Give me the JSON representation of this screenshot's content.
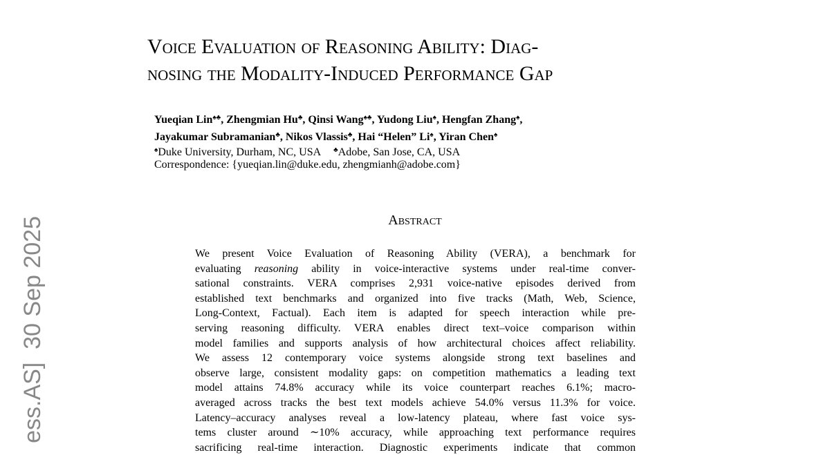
{
  "stamp": "ess.AS]  30 Sep 2025",
  "title": {
    "lines": [
      "Voice Evaluation of Reasoning Ability: Diag-",
      "nosing the Modality-Induced Performance Gap"
    ]
  },
  "authors": {
    "lines": [
      [
        "Yueqian Lin",
        "♠♣",
        ", Zhengmian Hu",
        "♣",
        ", Qinsi Wang",
        "♠♣",
        ", Yudong Liu",
        "♠",
        ", Hengfan Zhang",
        "♠",
        ","
      ],
      [
        "Jayakumar Subramanian",
        "♣",
        ", Nikos Vlassis",
        "♣",
        ", Hai “Helen” Li",
        "♠",
        ", Yiran Chen",
        "♠"
      ]
    ]
  },
  "affiliations": [
    {
      "mark": "♠",
      "text": "Duke University, Durham, NC, USA"
    },
    {
      "mark": "♣",
      "text": "Adobe, San Jose, CA, USA"
    }
  ],
  "correspondence": "Correspondence: {yueqian.lin@duke.edu, zhengmianh@adobe.com}",
  "abstract": {
    "heading": "Abstract",
    "lines": [
      "We present Voice Evaluation of Reasoning Ability (VERA), a benchmark for",
      "evaluating <i>reasoning</i> ability in voice-interactive systems under real-time conver-",
      "sational constraints. VERA comprises 2,931 voice-native episodes derived from",
      "established text benchmarks and organized into five tracks (Math, Web, Science,",
      "Long-Context, Factual). Each item is adapted for speech interaction while pre-",
      "serving reasoning difficulty. VERA enables direct text–voice comparison within",
      "model families and supports analysis of how architectural choices affect reliability.",
      "We assess 12 contemporary voice systems alongside strong text baselines and",
      "observe large, consistent modality gaps: on competition mathematics a leading text",
      "model attains 74.8% accuracy while its voice counterpart reaches 6.1%; macro-",
      "averaged across tracks the best text models achieve 54.0% versus 11.3% for voice.",
      "Latency–accuracy analyses reveal a low-latency plateau, where fast voice sys-",
      "tems cluster around ∼10% accuracy, while approaching text performance requires",
      "sacrificing real-time interaction. Diagnostic experiments indicate that common"
    ]
  }
}
